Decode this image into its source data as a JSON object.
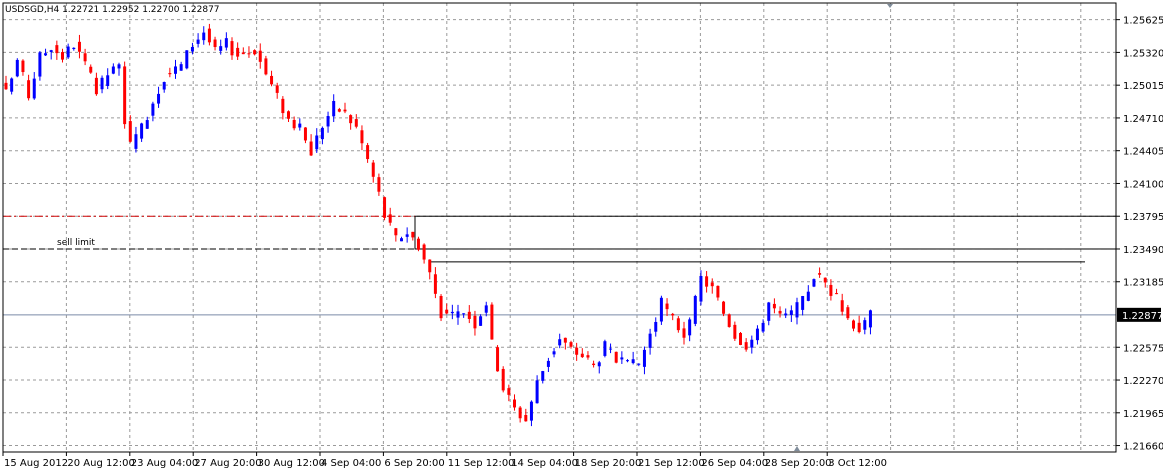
{
  "chart_data": {
    "type": "candlestick",
    "symbol": "USDSGD",
    "timeframe": "H4",
    "title": "USDSGD,H4",
    "ohlc_header": [
      "1.22721",
      "1.22952",
      "1.22700",
      "1.22877"
    ],
    "ylim": [
      1.216,
      1.2578
    ],
    "y_ticks": [
      "1.25625",
      "1.25320",
      "1.25015",
      "1.24710",
      "1.24405",
      "1.24100",
      "1.23795",
      "1.23490",
      "1.23185",
      "1.22877",
      "1.22575",
      "1.22270",
      "1.21965",
      "1.21660"
    ],
    "current_price": "1.22877",
    "x_labels": [
      "15 Aug 2012",
      "20 Aug 12:00",
      "23 Aug 04:00",
      "27 Aug 20:00",
      "30 Aug 12:00",
      "4 Sep 04:00",
      "6 Sep 20:00",
      "11 Sep 12:00",
      "14 Sep 04:00",
      "18 Sep 20:00",
      "21 Sep 12:00",
      "26 Sep 04:00",
      "28 Sep 20:00",
      "3 Oct 12:00"
    ],
    "annotations": {
      "sell_limit_label": "sell limit",
      "sell_limit_price": 1.2349,
      "red_dashed_level": 1.23795,
      "rectangle": {
        "price_top": 1.23795,
        "price_bottom": 1.2349
      },
      "horizontal_line": 1.2337
    },
    "grid": true,
    "colors": {
      "bull": "#0000ff",
      "bear": "#ff0000",
      "grid": "#9a9a9a",
      "axis": "#000000",
      "current_price_line": "#7a8aa8"
    },
    "close_path": [
      [
        0,
        1.2493
      ],
      [
        2,
        1.2525
      ],
      [
        4,
        1.2492
      ],
      [
        6,
        1.2528
      ],
      [
        8,
        1.2538
      ],
      [
        10,
        1.2528
      ],
      [
        12,
        1.254
      ],
      [
        14,
        1.252
      ],
      [
        16,
        1.2495
      ],
      [
        18,
        1.2512
      ],
      [
        20,
        1.2518
      ],
      [
        21,
        1.247
      ],
      [
        22,
        1.2445
      ],
      [
        23,
        1.245
      ],
      [
        25,
        1.2475
      ],
      [
        28,
        1.251
      ],
      [
        31,
        1.252
      ],
      [
        33,
        1.254
      ],
      [
        35,
        1.2552
      ],
      [
        37,
        1.2532
      ],
      [
        39,
        1.254
      ],
      [
        41,
        1.253
      ],
      [
        44,
        1.2535
      ],
      [
        46,
        1.2512
      ],
      [
        48,
        1.249
      ],
      [
        50,
        1.247
      ],
      [
        52,
        1.246
      ],
      [
        54,
        1.244
      ],
      [
        56,
        1.2465
      ],
      [
        58,
        1.2482
      ],
      [
        60,
        1.2475
      ],
      [
        62,
        1.2462
      ],
      [
        64,
        1.2432
      ],
      [
        66,
        1.24
      ],
      [
        67,
        1.238
      ],
      [
        69,
        1.2358
      ],
      [
        71,
        1.2365
      ],
      [
        73,
        1.2353
      ],
      [
        75,
        1.2326
      ],
      [
        77,
        1.229
      ],
      [
        79,
        1.2285
      ],
      [
        81,
        1.2292
      ],
      [
        83,
        1.228
      ],
      [
        85,
        1.23
      ],
      [
        86,
        1.226
      ],
      [
        88,
        1.222
      ],
      [
        90,
        1.22
      ],
      [
        92,
        1.219
      ],
      [
        94,
        1.2225
      ],
      [
        96,
        1.2248
      ],
      [
        98,
        1.2265
      ],
      [
        100,
        1.2255
      ],
      [
        102,
        1.225
      ],
      [
        104,
        1.224
      ],
      [
        106,
        1.2258
      ],
      [
        108,
        1.2245
      ],
      [
        110,
        1.224
      ],
      [
        112,
        1.2242
      ],
      [
        114,
        1.227
      ],
      [
        116,
        1.2298
      ],
      [
        118,
        1.2283
      ],
      [
        120,
        1.227
      ],
      [
        121,
        1.2278
      ],
      [
        123,
        1.2322
      ],
      [
        125,
        1.2312
      ],
      [
        127,
        1.229
      ],
      [
        129,
        1.227
      ],
      [
        131,
        1.226
      ],
      [
        133,
        1.227
      ],
      [
        135,
        1.23
      ],
      [
        137,
        1.2285
      ],
      [
        139,
        1.2288
      ],
      [
        141,
        1.23
      ],
      [
        143,
        1.2325
      ],
      [
        145,
        1.2318
      ],
      [
        147,
        1.2302
      ],
      [
        149,
        1.2285
      ],
      [
        151,
        1.2275
      ],
      [
        152,
        1.2278
      ],
      [
        153,
        1.2288
      ]
    ]
  }
}
